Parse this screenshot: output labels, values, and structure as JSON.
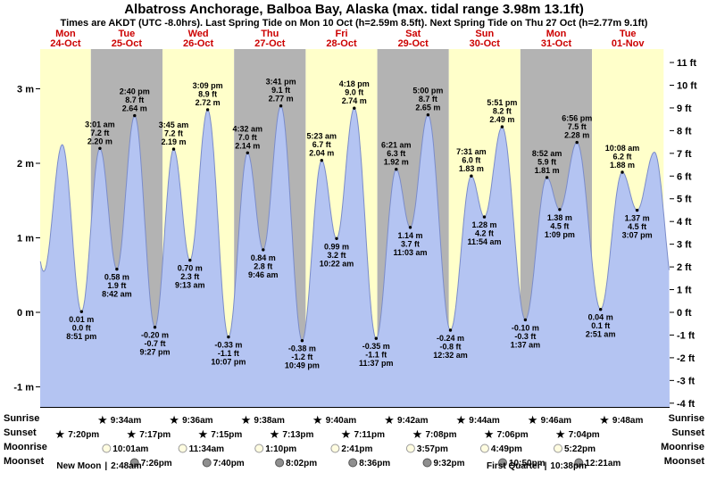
{
  "title": "Albatross Anchorage, Balboa Bay, Alaska (max. tidal range 3.98m 13.1ft)",
  "subtitle": "Times are AKDT (UTC -8.0hrs). Last Spring Tide on Mon 10 Oct (h=2.59m 8.5ft). Next Spring Tide on Thu 27 Oct (h=2.77m 9.1ft)",
  "days": [
    {
      "weekday": "Mon",
      "date": "24-Oct"
    },
    {
      "weekday": "Tue",
      "date": "25-Oct"
    },
    {
      "weekday": "Wed",
      "date": "26-Oct"
    },
    {
      "weekday": "Thu",
      "date": "27-Oct"
    },
    {
      "weekday": "Fri",
      "date": "28-Oct"
    },
    {
      "weekday": "Sat",
      "date": "29-Oct"
    },
    {
      "weekday": "Sun",
      "date": "30-Oct"
    },
    {
      "weekday": "Mon",
      "date": "31-Oct"
    },
    {
      "weekday": "Tue",
      "date": "01-Nov"
    }
  ],
  "chart_data": {
    "type": "area",
    "title": "Tide curve (height in m over time)",
    "axis_left_m": [
      {
        "v": 3,
        "label": "3 m"
      },
      {
        "v": 2,
        "label": "2 m"
      },
      {
        "v": 1,
        "label": "1 m"
      },
      {
        "v": 0,
        "label": "0 m"
      },
      {
        "v": -1,
        "label": "-1 m"
      }
    ],
    "axis_right_ft": [
      {
        "v": 11,
        "label": "11 ft"
      },
      {
        "v": 10,
        "label": "10 ft"
      },
      {
        "v": 9,
        "label": "9 ft"
      },
      {
        "v": 8,
        "label": "8 ft"
      },
      {
        "v": 7,
        "label": "7 ft"
      },
      {
        "v": 6,
        "label": "6 ft"
      },
      {
        "v": 5,
        "label": "5 ft"
      },
      {
        "v": 4,
        "label": "4 ft"
      },
      {
        "v": 3,
        "label": "3 ft"
      },
      {
        "v": 2,
        "label": "2 ft"
      },
      {
        "v": 1,
        "label": "1 ft"
      },
      {
        "v": 0,
        "label": "0 ft"
      },
      {
        "v": -1,
        "label": "-1 ft"
      },
      {
        "v": -2,
        "label": "-2 ft"
      },
      {
        "v": -3,
        "label": "-3 ft"
      },
      {
        "v": -4,
        "label": "-4 ft"
      }
    ],
    "events": [
      {
        "t": 1.8,
        "m": 2.3,
        "type": "high"
      },
      {
        "t": 8.2,
        "m": 0.55,
        "type": "low"
      },
      {
        "t": 14.4,
        "m": 2.25,
        "type": "high"
      },
      {
        "t": 20.85,
        "m": 0.01,
        "type": "low",
        "lines": [
          "0.01 m",
          "0.0 ft",
          "8:51 pm"
        ]
      },
      {
        "t": 27.02,
        "m": 2.2,
        "type": "high",
        "lines": [
          "3:01 am",
          "7.2 ft",
          "2.20 m"
        ]
      },
      {
        "t": 32.7,
        "m": 0.58,
        "type": "low",
        "lines": [
          "0.58 m",
          "1.9 ft",
          "8:42 am"
        ]
      },
      {
        "t": 38.67,
        "m": 2.64,
        "type": "high",
        "lines": [
          "2:40 pm",
          "8.7 ft",
          "2.64 m"
        ]
      },
      {
        "t": 45.45,
        "m": -0.2,
        "type": "low",
        "lines": [
          "-0.20 m",
          "-0.7 ft",
          "9:27 pm"
        ]
      },
      {
        "t": 51.75,
        "m": 2.19,
        "type": "high",
        "lines": [
          "3:45 am",
          "7.2 ft",
          "2.19 m"
        ]
      },
      {
        "t": 57.22,
        "m": 0.7,
        "type": "low",
        "lines": [
          "0.70 m",
          "2.3 ft",
          "9:13 am"
        ]
      },
      {
        "t": 63.15,
        "m": 2.72,
        "type": "high",
        "lines": [
          "3:09 pm",
          "8.9 ft",
          "2.72 m"
        ]
      },
      {
        "t": 70.12,
        "m": -0.33,
        "type": "low",
        "lines": [
          "-0.33 m",
          "-1.1 ft",
          "10:07 pm"
        ]
      },
      {
        "t": 76.53,
        "m": 2.14,
        "type": "high",
        "lines": [
          "4:32 am",
          "7.0 ft",
          "2.14 m"
        ]
      },
      {
        "t": 81.77,
        "m": 0.84,
        "type": "low",
        "lines": [
          "0.84 m",
          "2.8 ft",
          "9:46 am"
        ]
      },
      {
        "t": 87.68,
        "m": 2.77,
        "type": "high",
        "lines": [
          "3:41 pm",
          "9.1 ft",
          "2.77 m"
        ]
      },
      {
        "t": 94.82,
        "m": -0.38,
        "type": "low",
        "lines": [
          "-0.38 m",
          "-1.2 ft",
          "10:49 pm"
        ]
      },
      {
        "t": 101.38,
        "m": 2.04,
        "type": "high",
        "lines": [
          "5:23 am",
          "6.7 ft",
          "2.04 m"
        ]
      },
      {
        "t": 106.37,
        "m": 0.99,
        "type": "low",
        "lines": [
          "0.99 m",
          "3.2 ft",
          "10:22 am"
        ]
      },
      {
        "t": 112.3,
        "m": 2.74,
        "type": "high",
        "lines": [
          "4:18 pm",
          "9.0 ft",
          "2.74 m"
        ]
      },
      {
        "t": 119.62,
        "m": -0.35,
        "type": "low",
        "lines": [
          "-0.35 m",
          "-1.1 ft",
          "11:37 pm"
        ]
      },
      {
        "t": 126.35,
        "m": 1.92,
        "type": "high",
        "lines": [
          "6:21 am",
          "6.3 ft",
          "1.92 m"
        ]
      },
      {
        "t": 131.05,
        "m": 1.14,
        "type": "low",
        "lines": [
          "1.14 m",
          "3.7 ft",
          "11:03 am"
        ]
      },
      {
        "t": 137.0,
        "m": 2.65,
        "type": "high",
        "lines": [
          "5:00 pm",
          "8.7 ft",
          "2.65 m"
        ]
      },
      {
        "t": 144.53,
        "m": -0.24,
        "type": "low",
        "lines": [
          "-0.24 m",
          "-0.8 ft",
          "12:32 am"
        ]
      },
      {
        "t": 151.52,
        "m": 1.83,
        "type": "high",
        "lines": [
          "7:31 am",
          "6.0 ft",
          "1.83 m"
        ]
      },
      {
        "t": 155.9,
        "m": 1.28,
        "type": "low",
        "lines": [
          "1.28 m",
          "4.2 ft",
          "11:54 am"
        ]
      },
      {
        "t": 161.85,
        "m": 2.49,
        "type": "high",
        "lines": [
          "5:51 pm",
          "8.2 ft",
          "2.49 m"
        ]
      },
      {
        "t": 169.62,
        "m": -0.1,
        "type": "low",
        "lines": [
          "-0.10 m",
          "-0.3 ft",
          "1:37 am"
        ]
      },
      {
        "t": 176.87,
        "m": 1.81,
        "type": "high",
        "lines": [
          "8:52 am",
          "5.9 ft",
          "1.81 m"
        ]
      },
      {
        "t": 181.15,
        "m": 1.38,
        "type": "low",
        "lines": [
          "1.38 m",
          "4.5 ft",
          "1:09 pm"
        ]
      },
      {
        "t": 186.93,
        "m": 2.28,
        "type": "high",
        "lines": [
          "6:56 pm",
          "7.5 ft",
          "2.28 m"
        ]
      },
      {
        "t": 194.85,
        "m": 0.04,
        "type": "low",
        "lines": [
          "0.04 m",
          "0.1 ft",
          "2:51 am"
        ]
      },
      {
        "t": 202.13,
        "m": 1.88,
        "type": "high",
        "lines": [
          "10:08 am",
          "6.2 ft",
          "1.88 m"
        ]
      },
      {
        "t": 207.12,
        "m": 1.37,
        "type": "low",
        "lines": [
          "1.37 m",
          "4.5 ft",
          "3:07 pm"
        ]
      },
      {
        "t": 212.9,
        "m": 2.15,
        "type": "high"
      },
      {
        "t": 219.8,
        "m": 0.2,
        "type": "low"
      }
    ]
  },
  "astro": {
    "row_labels": [
      "Sunrise",
      "Sunset",
      "Moonrise",
      "Moonset"
    ],
    "sunrise": [
      {
        "t": 33.57,
        "time": "9:34am"
      },
      {
        "t": 57.6,
        "time": "9:36am"
      },
      {
        "t": 81.63,
        "time": "9:38am"
      },
      {
        "t": 105.67,
        "time": "9:40am"
      },
      {
        "t": 129.7,
        "time": "9:42am"
      },
      {
        "t": 153.73,
        "time": "9:44am"
      },
      {
        "t": 177.77,
        "time": "9:46am"
      },
      {
        "t": 201.8,
        "time": "9:48am"
      }
    ],
    "sunset": [
      {
        "t": 19.33,
        "time": "7:20pm"
      },
      {
        "t": 43.28,
        "time": "7:17pm"
      },
      {
        "t": 67.25,
        "time": "7:15pm"
      },
      {
        "t": 91.22,
        "time": "7:13pm"
      },
      {
        "t": 115.18,
        "time": "7:11pm"
      },
      {
        "t": 139.13,
        "time": "7:08pm"
      },
      {
        "t": 163.1,
        "time": "7:06pm"
      },
      {
        "t": 187.07,
        "time": "7:04pm"
      }
    ],
    "moonrise": [
      {
        "t": 34.02,
        "time": "10:01am"
      },
      {
        "t": 59.57,
        "time": "11:34am"
      },
      {
        "t": 85.17,
        "time": "1:10pm"
      },
      {
        "t": 110.68,
        "time": "2:41pm"
      },
      {
        "t": 135.95,
        "time": "3:57pm"
      },
      {
        "t": 160.82,
        "time": "4:49pm"
      },
      {
        "t": 185.37,
        "time": "5:22pm"
      }
    ],
    "moonset": [
      {
        "t": 43.43,
        "time": "7:26pm"
      },
      {
        "t": 67.67,
        "time": "7:40pm"
      },
      {
        "t": 92.03,
        "time": "8:02pm"
      },
      {
        "t": 116.6,
        "time": "8:36pm"
      },
      {
        "t": 141.53,
        "time": "9:32pm"
      },
      {
        "t": 166.83,
        "time": "10:50pm"
      },
      {
        "t": 192.35,
        "time": "12:21am"
      }
    ],
    "phases": [
      {
        "name": "New Moon",
        "time": "2:48am",
        "t": 26.8
      },
      {
        "name": "First Quarter",
        "time": "10:38pm",
        "t": 190.63
      }
    ]
  },
  "colors": {
    "day_band": "#ffffca",
    "night_band": "#b3b3b3",
    "tide_fill": "#b4c4f2",
    "tide_line": "#7b8cc9",
    "day_label": "#cc0000",
    "sunrise_star": "#f2c31d",
    "sunset_star": "#e8581e",
    "moonrise_icon": "#fffce0",
    "moonset_icon": "#8f8f8f"
  }
}
